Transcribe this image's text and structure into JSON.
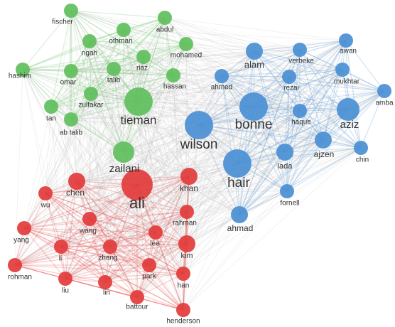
{
  "clusters": [
    {
      "color": "#5fbf5c",
      "nodes": [
        "fischer",
        "abdul",
        "othman",
        "ngah",
        "mohamed",
        "riaz",
        "hashim",
        "omar",
        "talib",
        "hassan",
        "zulfakar",
        "tieman",
        "tan",
        "ab talib",
        "zailani"
      ]
    },
    {
      "color": "#4a8fd4",
      "nodes": [
        "alam",
        "awan",
        "verbeke",
        "ahmed",
        "rezai",
        "mukhtar",
        "amba",
        "bonne",
        "haque",
        "aziz",
        "wilson",
        "ajzen",
        "lada",
        "chin",
        "hair",
        "fornell",
        "ahmad"
      ]
    },
    {
      "color": "#e23b3b",
      "nodes": [
        "ali",
        "khan",
        "chen",
        "wu",
        "rahman",
        "wang",
        "yang",
        "lee",
        "zhang",
        "kim",
        "li",
        "park",
        "rohman",
        "han",
        "liu",
        "lin",
        "battour",
        "henderson"
      ]
    }
  ]
}
